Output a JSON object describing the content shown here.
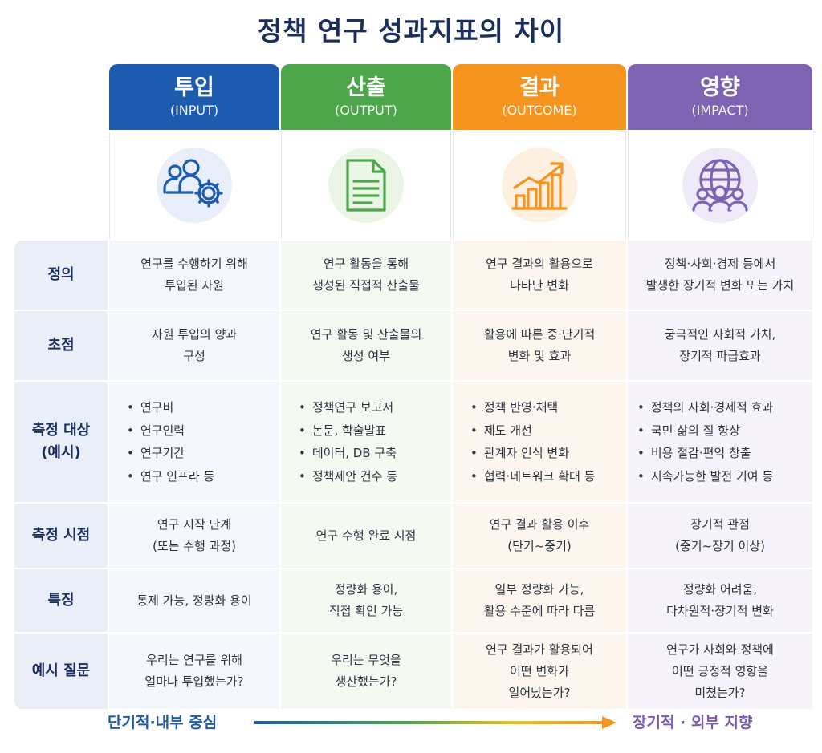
{
  "title": "정책 연구 성과지표의 차이",
  "colors": {
    "input": "#1d5bb0",
    "output": "#4da64a",
    "outcome": "#f5941f",
    "impact": "#7d64b3",
    "label_text": "#1b2f5e"
  },
  "columns": [
    {
      "name": "투입",
      "sub": "(INPUT)",
      "icon": "people-gear-icon"
    },
    {
      "name": "산출",
      "sub": "(OUTPUT)",
      "icon": "document-icon"
    },
    {
      "name": "결과",
      "sub": "(OUTCOME)",
      "icon": "growth-chart-icon"
    },
    {
      "name": "영향",
      "sub": "(IMPACT)",
      "icon": "globe-people-icon"
    }
  ],
  "rows": {
    "definition": {
      "label": "정의",
      "cells": [
        [
          "연구를 수행하기 위해",
          "투입된 자원"
        ],
        [
          "연구 활동을 통해",
          "생성된 직접적 산출물"
        ],
        [
          "연구 결과의 활용으로",
          "나타난 변화"
        ],
        [
          "정책·사회·경제 등에서",
          "발생한 장기적 변화 또는 가치"
        ]
      ]
    },
    "focus": {
      "label": "초점",
      "cells": [
        [
          "자원 투입의 양과",
          "구성"
        ],
        [
          "연구 활동 및 산출물의",
          "생성 여부"
        ],
        [
          "활용에 따른 중·단기적",
          "변화 및 효과"
        ],
        [
          "궁극적인 사회적 가치,",
          "장기적 파급효과"
        ]
      ]
    },
    "targets": {
      "label": [
        "측정 대상",
        "(예시)"
      ],
      "cells": [
        [
          "연구비",
          "연구인력",
          "연구기간",
          "연구 인프라 등"
        ],
        [
          "정책연구 보고서",
          "논문, 학술발표",
          "데이터, DB 구축",
          "정책제안 건수 등"
        ],
        [
          "정책 반영·채택",
          "제도 개선",
          "관계자 인식 변화",
          "협력·네트워크 확대 등"
        ],
        [
          "정책의 사회·경제적 효과",
          "국민 삶의 질 향상",
          "비용 절감·편익 창출",
          "지속가능한 발전 기여 등"
        ]
      ]
    },
    "timing": {
      "label": "측정 시점",
      "cells": [
        [
          "연구 시작 단계",
          "(또는 수행 과정)"
        ],
        [
          "연구 수행 완료 시점"
        ],
        [
          "연구 결과 활용 이후",
          "(단기~중기)"
        ],
        [
          "장기적 관점",
          "(중기~장기 이상)"
        ]
      ]
    },
    "traits": {
      "label": "특징",
      "cells": [
        [
          "통제 가능, 정량화 용이"
        ],
        [
          "정량화 용이,",
          "직접 확인 가능"
        ],
        [
          "일부 정량화 가능,",
          "활용 수준에 따라 다름"
        ],
        [
          "정량화 어려움,",
          "다차원적·장기적 변화"
        ]
      ]
    },
    "questions": {
      "label": "예시 질문",
      "cells": [
        [
          "우리는 연구를 위해",
          "얼마나 투입했는가?"
        ],
        [
          "우리는 무엇을",
          "생산했는가?"
        ],
        [
          "연구 결과가 활용되어",
          "어떤 변화가",
          "일어났는가?"
        ],
        [
          "연구가 사회와 정책에",
          "어떤 긍정적 영향을",
          "미쳤는가?"
        ]
      ]
    }
  },
  "footer": {
    "left": "단기적·내부 중심",
    "right": "장기적 · 외부 지향"
  }
}
